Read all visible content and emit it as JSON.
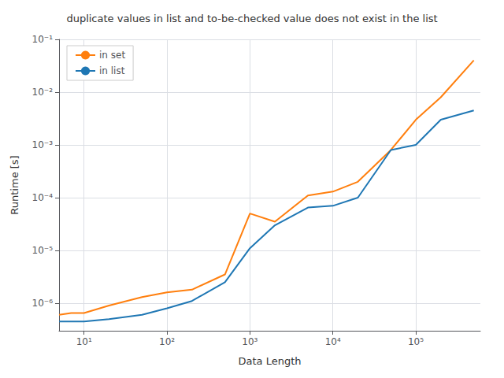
{
  "chart_data": {
    "type": "line",
    "title": "duplicate values in list and to-be-checked value does not exist in the list",
    "xlabel": "Data Length",
    "ylabel": "Runtime [s]",
    "log": true,
    "grid": true,
    "legend": "upper left",
    "xlim": [
      5,
      600000
    ],
    "ylim": [
      3e-07,
      0.1
    ],
    "xticks": [
      {
        "value": 10,
        "label": "10¹"
      },
      {
        "value": 100,
        "label": "10²"
      },
      {
        "value": 1000,
        "label": "10³"
      },
      {
        "value": 10000,
        "label": "10⁴"
      },
      {
        "value": 100000,
        "label": "10⁵"
      }
    ],
    "yticks": [
      {
        "value": 1e-06,
        "label": "10⁻⁶"
      },
      {
        "value": 1e-05,
        "label": "10⁻⁵"
      },
      {
        "value": 0.0001,
        "label": "10⁻⁴"
      },
      {
        "value": 0.001,
        "label": "10⁻³"
      },
      {
        "value": 0.01,
        "label": "10⁻²"
      },
      {
        "value": 0.1,
        "label": "10⁻¹"
      }
    ],
    "x": [
      5,
      7,
      10,
      20,
      50,
      100,
      200,
      500,
      1000,
      2000,
      5000,
      10000,
      20000,
      50000,
      100000,
      200000,
      500000
    ],
    "series": [
      {
        "name": "in set",
        "color": "#ff7f0e",
        "values": [
          6e-07,
          6.5e-07,
          6.5e-07,
          9e-07,
          1.3e-06,
          1.6e-06,
          1.8e-06,
          3.5e-06,
          5e-05,
          3.5e-05,
          0.00011,
          0.00013,
          0.0002,
          0.0008,
          0.003,
          0.008,
          0.04
        ]
      },
      {
        "name": "in list",
        "color": "#1f77b4",
        "values": [
          4.5e-07,
          4.5e-07,
          4.5e-07,
          5e-07,
          6e-07,
          8e-07,
          1.1e-06,
          2.5e-06,
          1.1e-05,
          3e-05,
          6.5e-05,
          7e-05,
          0.0001,
          0.0008,
          0.001,
          0.003,
          0.0045
        ]
      }
    ]
  }
}
